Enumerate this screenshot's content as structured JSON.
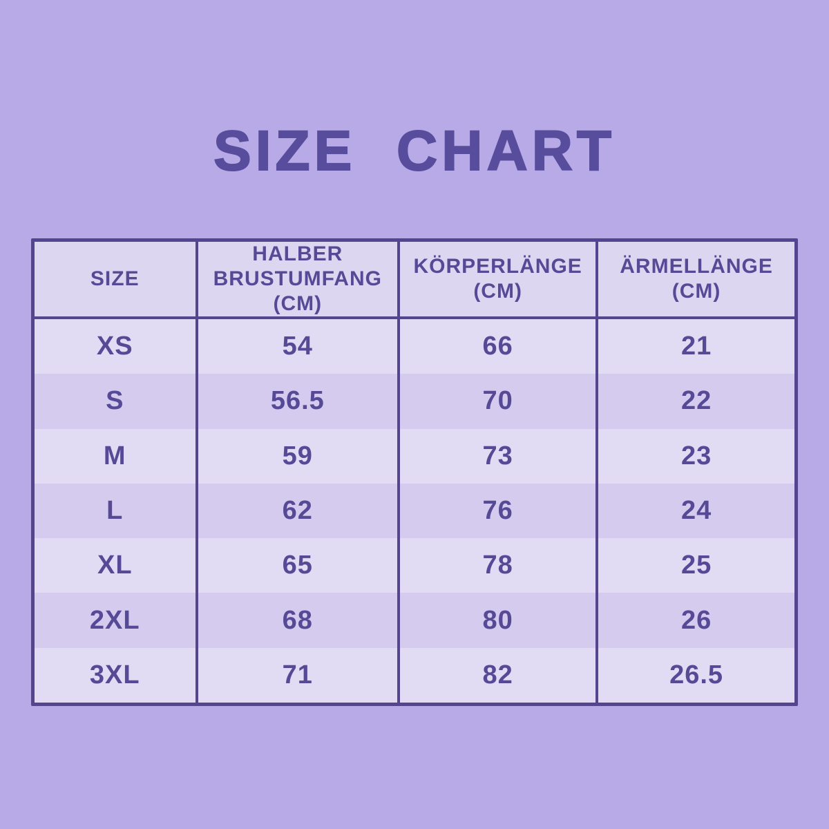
{
  "title": "SIZE CHART",
  "theme": {
    "bg": "#b7aae6",
    "header-bg": "#ddd6f1",
    "row-light": "#e1dbf4",
    "row-dark": "#d4cbee",
    "ink": "#53468e",
    "text-ink": "#564a96",
    "title-ink": "#584c9c"
  },
  "headers": [
    {
      "label": "SIZE",
      "unit": ""
    },
    {
      "label": "HALBER BRUSTUMFANG",
      "unit": "(CM)"
    },
    {
      "label": "KÖRPERLÄNGE",
      "unit": "(CM)"
    },
    {
      "label": "ÄRMELLÄNGE",
      "unit": "(CM)"
    }
  ],
  "chart_data": {
    "type": "table",
    "title": "SIZE CHART",
    "columns": [
      "SIZE",
      "HALBER BRUSTUMFANG (CM)",
      "KÖRPERLÄNGE (CM)",
      "ÄRMELLÄNGE (CM)"
    ],
    "rows": [
      [
        "XS",
        "54",
        "66",
        "21"
      ],
      [
        "S",
        "56.5",
        "70",
        "22"
      ],
      [
        "M",
        "59",
        "73",
        "23"
      ],
      [
        "L",
        "62",
        "76",
        "24"
      ],
      [
        "XL",
        "65",
        "78",
        "25"
      ],
      [
        "2XL",
        "68",
        "80",
        "26"
      ],
      [
        "3XL",
        "71",
        "82",
        "26.5"
      ]
    ]
  }
}
